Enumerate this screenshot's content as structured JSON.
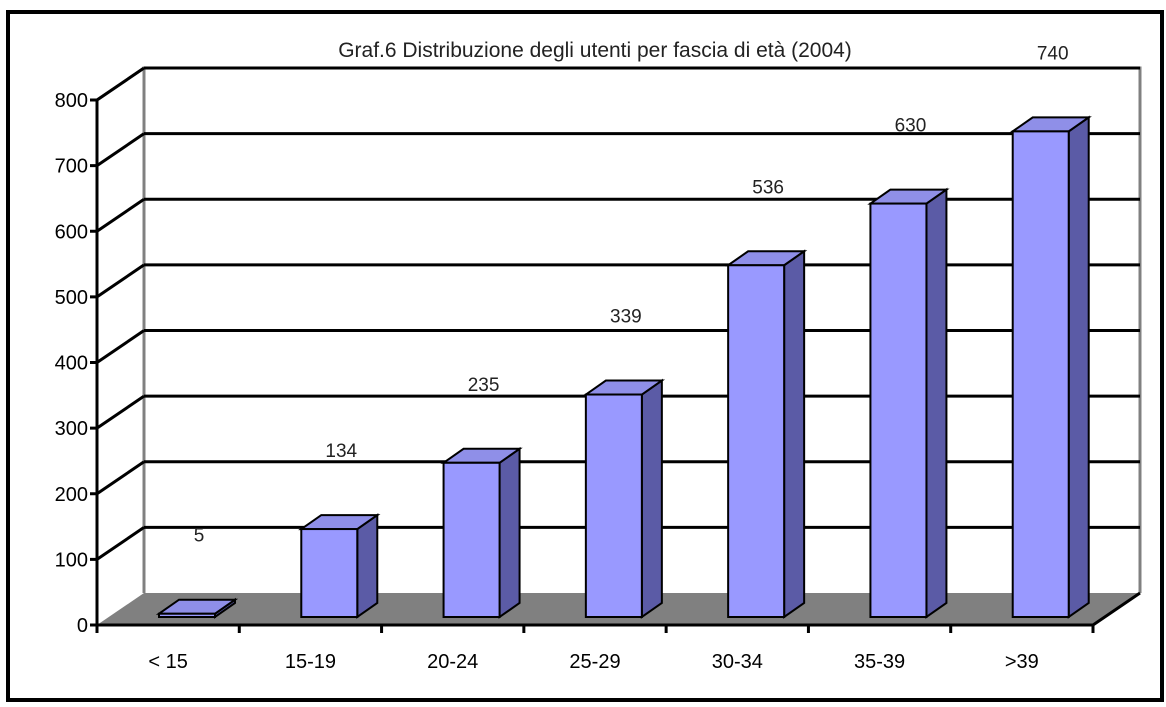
{
  "chart_data": {
    "type": "bar",
    "title": "Graf.6 Distribuzione degli utenti  per fascia di età (2004)",
    "categories": [
      "< 15",
      "15-19",
      "20-24",
      "25-29",
      "30-34",
      "35-39",
      ">39"
    ],
    "values": [
      5,
      134,
      235,
      339,
      536,
      630,
      740
    ],
    "data_labels": [
      "5",
      "134",
      "235",
      "339",
      "536",
      "630",
      "740"
    ],
    "yticks": [
      0,
      100,
      200,
      300,
      400,
      500,
      600,
      700,
      800
    ],
    "ylim": [
      0,
      800
    ],
    "xlabel": "",
    "ylabel": "",
    "grid": true,
    "legend": "none",
    "colors": {
      "bar_front": "#9999ff",
      "bar_top": "#8f8fe8",
      "bar_side": "#5b5ba6",
      "floor": "#808080",
      "wall_border": "#808080",
      "gridline": "#000000",
      "frame": "#000000"
    }
  }
}
